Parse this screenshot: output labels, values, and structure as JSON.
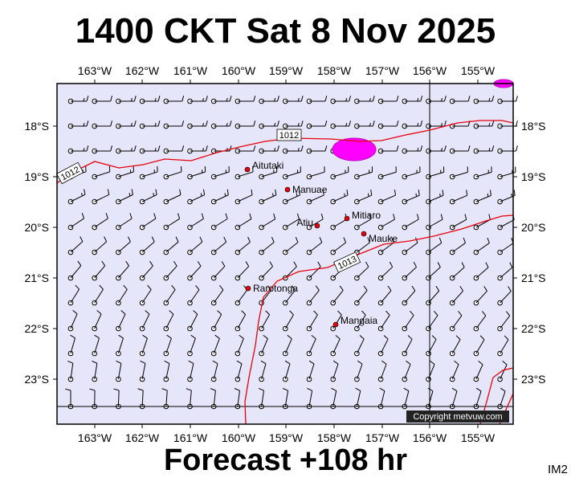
{
  "title": "1400 CKT Sat 8 Nov 2025",
  "footer": "Forecast +108 hr",
  "code": "IM2",
  "copyright": "Copyright metvuw.com",
  "colors": {
    "ocean": "#e6e6fa",
    "isobar": "#e8000b",
    "precip": "#ff00ff",
    "frame": "#000000",
    "island": "#e8000b"
  },
  "axes": {
    "lon_labels": [
      "163°W",
      "162°W",
      "161°W",
      "160°W",
      "159°W",
      "158°W",
      "157°W",
      "156°W",
      "155°W"
    ],
    "lat_labels": [
      "18°S",
      "19°S",
      "20°S",
      "21°S",
      "22°S",
      "23°S"
    ]
  },
  "isobars": [
    {
      "label": "1012"
    },
    {
      "label": "1013"
    }
  ],
  "places": [
    {
      "name": "Aitutaki"
    },
    {
      "name": "Manuae"
    },
    {
      "name": "Atiu"
    },
    {
      "name": "Mitiaro"
    },
    {
      "name": "Mauke"
    },
    {
      "name": "Rarotonga"
    },
    {
      "name": "Mangaia"
    }
  ]
}
